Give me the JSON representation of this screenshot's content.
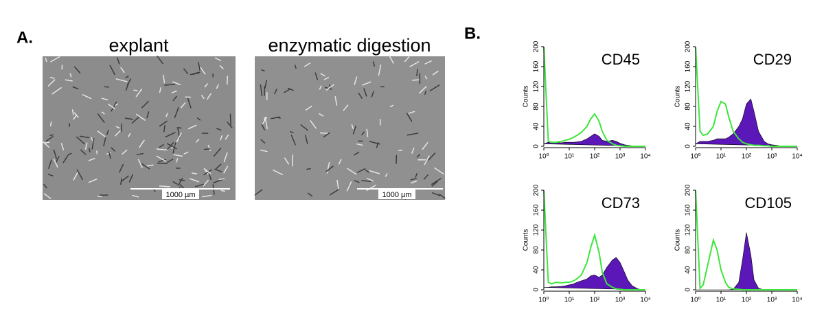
{
  "panel_a": {
    "label": "A.",
    "images": [
      {
        "title": "explant",
        "scale_bar": "1000 µm"
      },
      {
        "title": "enzymatic digestion",
        "scale_bar": "1000 µm"
      }
    ]
  },
  "panel_b": {
    "label": "B."
  },
  "chart_data": [
    {
      "type": "area",
      "title": "CD45",
      "ylabel": "Counts",
      "xscale": "log",
      "x": [
        1,
        1.5,
        2,
        3,
        5,
        7,
        10,
        15,
        20,
        30,
        50,
        70,
        100,
        150,
        200,
        300,
        500,
        700,
        1000,
        1500,
        2000,
        3000,
        5000,
        7000,
        10000
      ],
      "xlim": [
        1,
        10000
      ],
      "xticks": [
        {
          "value": 1,
          "label": "10⁰"
        },
        {
          "value": 10,
          "label": "10¹"
        },
        {
          "value": 100,
          "label": "10²"
        },
        {
          "value": 1000,
          "label": "10³"
        },
        {
          "value": 10000,
          "label": "10⁴"
        }
      ],
      "ylim": [
        0,
        200
      ],
      "yticks": [
        0,
        40,
        80,
        120,
        160,
        200
      ],
      "series": [
        {
          "color": "#5b17b8",
          "fill": true,
          "values": [
            5,
            8,
            8,
            7,
            7,
            8,
            8,
            8,
            9,
            10,
            15,
            20,
            25,
            20,
            12,
            10,
            12,
            10,
            6,
            3,
            2,
            1,
            0,
            0,
            0
          ]
        },
        {
          "color": "#3ce63c",
          "fill": false,
          "values": [
            200,
            10,
            8,
            8,
            10,
            12,
            14,
            18,
            22,
            28,
            40,
            55,
            65,
            50,
            30,
            12,
            5,
            2,
            1,
            0,
            0,
            0,
            0,
            0,
            0
          ]
        }
      ]
    },
    {
      "type": "area",
      "title": "CD29",
      "ylabel": "Counts",
      "xscale": "log",
      "x": [
        1,
        1.5,
        2,
        3,
        5,
        7,
        10,
        15,
        20,
        30,
        50,
        70,
        100,
        150,
        200,
        300,
        500,
        700,
        1000,
        1500,
        2000,
        3000,
        5000,
        7000,
        10000
      ],
      "xlim": [
        1,
        10000
      ],
      "xticks": [
        {
          "value": 1,
          "label": "10⁰"
        },
        {
          "value": 10,
          "label": "10¹"
        },
        {
          "value": 100,
          "label": "10²"
        },
        {
          "value": 1000,
          "label": "10³"
        },
        {
          "value": 10000,
          "label": "10⁴"
        }
      ],
      "ylim": [
        0,
        200
      ],
      "yticks": [
        0,
        40,
        80,
        120,
        160,
        200
      ],
      "series": [
        {
          "color": "#5b17b8",
          "fill": true,
          "values": [
            5,
            10,
            10,
            10,
            12,
            15,
            15,
            15,
            18,
            25,
            40,
            55,
            85,
            95,
            70,
            30,
            10,
            5,
            3,
            2,
            1,
            0,
            0,
            0,
            0
          ]
        },
        {
          "color": "#3ce63c",
          "fill": false,
          "values": [
            200,
            30,
            22,
            25,
            40,
            70,
            90,
            85,
            60,
            30,
            15,
            8,
            5,
            3,
            2,
            2,
            1,
            1,
            0,
            0,
            0,
            0,
            0,
            0,
            0
          ]
        }
      ]
    },
    {
      "type": "area",
      "title": "CD73",
      "ylabel": "Counts",
      "xscale": "log",
      "x": [
        1,
        1.5,
        2,
        3,
        5,
        7,
        10,
        15,
        20,
        30,
        50,
        70,
        100,
        150,
        200,
        300,
        500,
        700,
        1000,
        1500,
        2000,
        3000,
        5000,
        7000,
        10000
      ],
      "xlim": [
        1,
        10000
      ],
      "xticks": [
        {
          "value": 1,
          "label": "10⁰"
        },
        {
          "value": 10,
          "label": "10¹"
        },
        {
          "value": 100,
          "label": "10²"
        },
        {
          "value": 1000,
          "label": "10³"
        },
        {
          "value": 10000,
          "label": "10⁴"
        }
      ],
      "ylim": [
        0,
        200
      ],
      "yticks": [
        0,
        40,
        80,
        120,
        160,
        200
      ],
      "series": [
        {
          "color": "#5b17b8",
          "fill": true,
          "values": [
            5,
            5,
            6,
            6,
            7,
            8,
            10,
            12,
            15,
            18,
            22,
            28,
            30,
            25,
            30,
            45,
            60,
            65,
            55,
            35,
            20,
            8,
            2,
            0,
            0
          ]
        },
        {
          "color": "#3ce63c",
          "fill": false,
          "values": [
            200,
            15,
            12,
            15,
            14,
            15,
            15,
            18,
            22,
            30,
            55,
            85,
            110,
            75,
            35,
            12,
            5,
            2,
            1,
            0,
            0,
            0,
            0,
            0,
            0
          ]
        }
      ]
    },
    {
      "type": "area",
      "title": "CD105",
      "ylabel": "Counts",
      "xscale": "log",
      "x": [
        1,
        1.5,
        2,
        3,
        5,
        7,
        10,
        15,
        20,
        30,
        50,
        70,
        100,
        150,
        200,
        300,
        500,
        700,
        1000,
        1500,
        2000,
        3000,
        5000,
        7000,
        10000
      ],
      "xlim": [
        1,
        10000
      ],
      "xticks": [
        {
          "value": 1,
          "label": "10⁰"
        },
        {
          "value": 10,
          "label": "10¹"
        },
        {
          "value": 100,
          "label": "10²"
        },
        {
          "value": 1000,
          "label": "10³"
        },
        {
          "value": 10000,
          "label": "10⁴"
        }
      ],
      "ylim": [
        0,
        200
      ],
      "yticks": [
        0,
        40,
        80,
        120,
        160,
        200
      ],
      "series": [
        {
          "color": "#5b17b8",
          "fill": true,
          "values": [
            0,
            0,
            0,
            0,
            0,
            0,
            0,
            0,
            0,
            1,
            15,
            60,
            115,
            70,
            20,
            3,
            0,
            0,
            0,
            0,
            0,
            0,
            0,
            0,
            0
          ]
        },
        {
          "color": "#3ce63c",
          "fill": false,
          "values": [
            200,
            3,
            10,
            50,
            100,
            80,
            40,
            15,
            5,
            2,
            1,
            0,
            0,
            0,
            0,
            0,
            0,
            0,
            0,
            0,
            0,
            0,
            0,
            0,
            0
          ]
        }
      ]
    }
  ]
}
